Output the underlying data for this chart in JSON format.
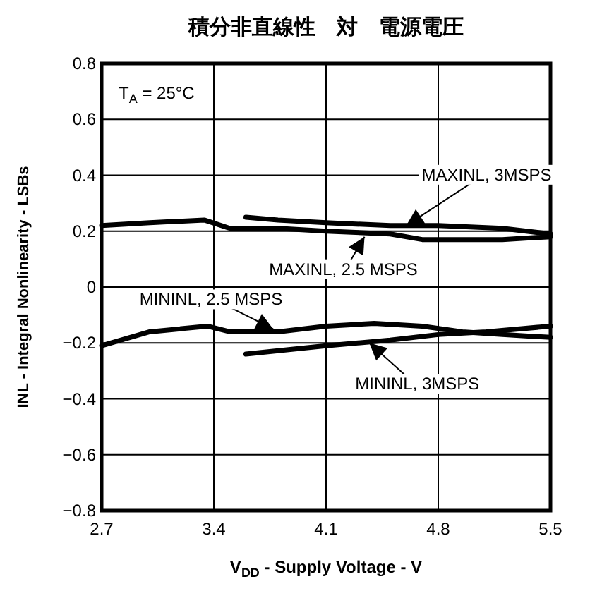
{
  "chart_data": {
    "type": "line",
    "title": "積分非直線性　対　電源電圧",
    "xlabel": "V$_{DD}$ - Supply Voltage - V",
    "ylabel": "INL - Integral Nonlinearity - LSBs",
    "xlim": [
      2.7,
      5.5
    ],
    "xticks": [
      2.7,
      3.4,
      4.1,
      4.8,
      5.5
    ],
    "ylim": [
      -0.8,
      0.8
    ],
    "yticks": [
      {
        "value": -0.8,
        "label": "−0.8"
      },
      {
        "value": -0.6,
        "label": "−0.6"
      },
      {
        "value": -0.4,
        "label": "−0.4"
      },
      {
        "value": -0.2,
        "label": "−0.2"
      },
      0,
      0.2,
      0.4,
      0.6,
      0.8
    ],
    "grid": true,
    "marker": "none",
    "line_style": "solid",
    "series": [
      {
        "color": "#000000",
        "x": [
          2.7,
          3.0,
          3.34,
          3.5,
          3.8,
          4.1,
          4.5,
          4.7,
          5.0,
          5.2,
          5.5
        ],
        "values": [
          0.22,
          0.23,
          0.24,
          0.21,
          0.21,
          0.2,
          0.19,
          0.17,
          0.17,
          0.17,
          0.18
        ]
      },
      {
        "color": "#000000",
        "x": [
          3.6,
          3.8,
          4.1,
          4.5,
          4.8,
          5.2,
          5.5
        ],
        "values": [
          0.25,
          0.24,
          0.23,
          0.22,
          0.22,
          0.21,
          0.19
        ]
      },
      {
        "color": "#000000",
        "x": [
          2.7,
          3.0,
          3.36,
          3.5,
          3.8,
          4.1,
          4.4,
          4.7,
          4.95,
          5.2,
          5.5
        ],
        "values": [
          -0.21,
          -0.16,
          -0.14,
          -0.16,
          -0.16,
          -0.14,
          -0.13,
          -0.14,
          -0.16,
          -0.17,
          -0.18
        ]
      },
      {
        "color": "#000000",
        "x": [
          3.6,
          4.1,
          4.5,
          4.8,
          5.1,
          5.5
        ],
        "values": [
          -0.24,
          -0.21,
          -0.19,
          -0.17,
          -0.16,
          -0.14
        ]
      }
    ],
    "annotations": [
      "T$_{A}$ = 25°C",
      {
        "text": "MAXINL, 3MSPS",
        "x": 4.6,
        "y": 0.22
      },
      {
        "text": "MAXINL, 2.5 MSPS",
        "x": 4.34,
        "y": 0.18
      },
      {
        "text": "MININL, 2.5 MSPS",
        "x": 3.77,
        "y": -0.15
      },
      {
        "text": "MININL, 3MSPS",
        "x": 4.37,
        "y": -0.2
      }
    ]
  }
}
